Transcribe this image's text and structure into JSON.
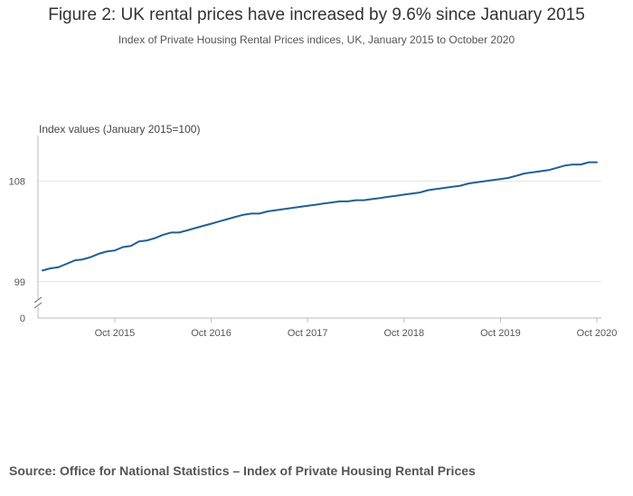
{
  "title": "Figure 2: UK rental prices have increased by 9.6% since January 2015",
  "subtitle": "Index of Private Housing Rental Prices indices, UK, January 2015 to October 2020",
  "source": "Source: Office for National Statistics – Index of Private Housing Rental Prices",
  "colors": {
    "line": "#206095",
    "grid": "#e3e3e3",
    "axis": "#bbbbbb"
  },
  "chart_data": {
    "type": "line",
    "title": "Figure 2: UK rental prices have increased by 9.6% since January 2015",
    "ylabel": "Index values (January 2015=100)",
    "xlabel": "",
    "y_axis_break": true,
    "y_ticks": [
      0,
      99,
      108
    ],
    "y_tick_labels": [
      "0",
      "99",
      "108"
    ],
    "ylim": [
      97.2,
      112.1
    ],
    "x_ticks": [
      9,
      21,
      33,
      45,
      57,
      69
    ],
    "x_tick_labels": [
      "Oct 2015",
      "Oct 2016",
      "Oct 2017",
      "Oct 2018",
      "Oct 2019",
      "Oct 2020"
    ],
    "x_start_label": "Jan 2015",
    "grid": true,
    "series": [
      {
        "name": "Index of Private Housing Rental Prices, UK",
        "x": [
          0,
          1,
          2,
          3,
          4,
          5,
          6,
          7,
          8,
          9,
          10,
          11,
          12,
          13,
          14,
          15,
          16,
          17,
          18,
          19,
          20,
          21,
          22,
          23,
          24,
          25,
          26,
          27,
          28,
          29,
          30,
          31,
          32,
          33,
          34,
          35,
          36,
          37,
          38,
          39,
          40,
          41,
          42,
          43,
          44,
          45,
          46,
          47,
          48,
          49,
          50,
          51,
          52,
          53,
          54,
          55,
          56,
          57,
          58,
          59,
          60,
          61,
          62,
          63,
          64,
          65,
          66,
          67,
          68,
          69
        ],
        "values": [
          100.0,
          100.2,
          100.3,
          100.6,
          100.9,
          101.0,
          101.2,
          101.5,
          101.7,
          101.8,
          102.1,
          102.2,
          102.6,
          102.7,
          102.9,
          103.2,
          103.4,
          103.4,
          103.6,
          103.8,
          104.0,
          104.2,
          104.4,
          104.6,
          104.8,
          105.0,
          105.1,
          105.1,
          105.3,
          105.4,
          105.5,
          105.6,
          105.7,
          105.8,
          105.9,
          106.0,
          106.1,
          106.2,
          106.2,
          106.3,
          106.3,
          106.4,
          106.5,
          106.6,
          106.7,
          106.8,
          106.9,
          107.0,
          107.2,
          107.3,
          107.4,
          107.5,
          107.6,
          107.8,
          107.9,
          108.0,
          108.1,
          108.2,
          108.3,
          108.5,
          108.7,
          108.8,
          108.9,
          109.0,
          109.2,
          109.4,
          109.5,
          109.5,
          109.7,
          109.7
        ]
      }
    ]
  }
}
